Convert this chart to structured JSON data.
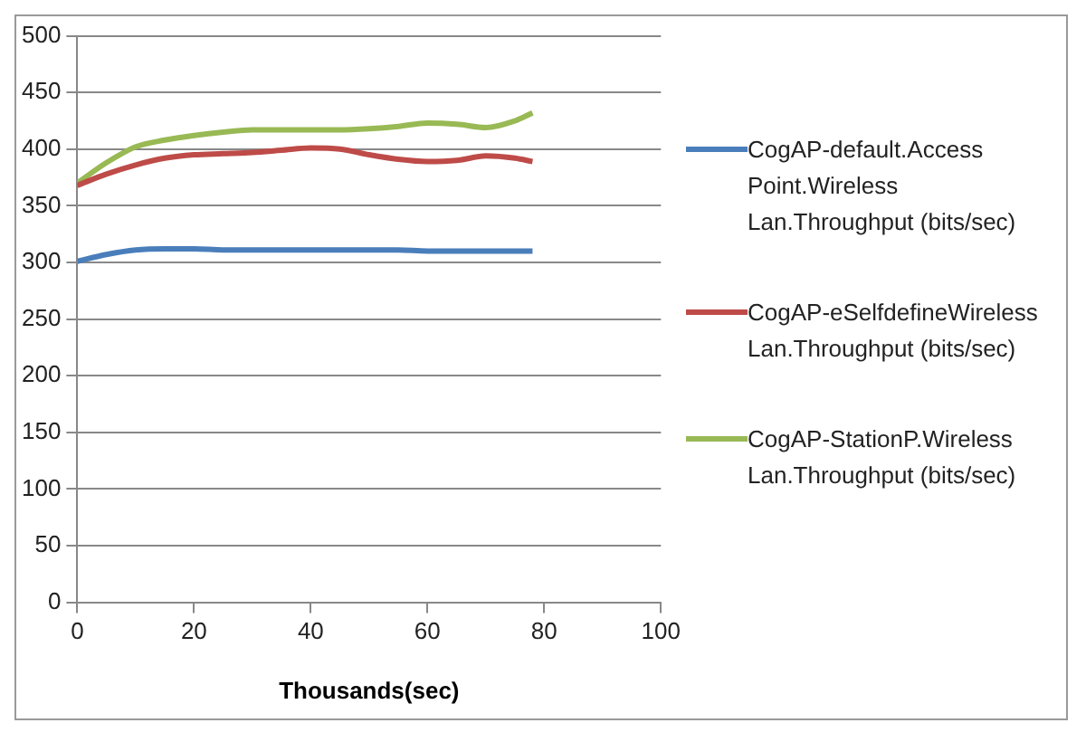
{
  "chart_data": {
    "type": "line",
    "xlabel": "Thousands(sec)",
    "x": [
      0,
      5,
      10,
      15,
      20,
      25,
      30,
      35,
      40,
      45,
      50,
      55,
      60,
      65,
      70,
      75,
      78
    ],
    "series": [
      {
        "name": "CogAP-default.Access Point.Wireless Lan.Throughput (bits/sec)",
        "color": "#4a7ebb",
        "values": [
          301,
          307,
          311,
          312,
          312,
          311,
          311,
          311,
          311,
          311,
          311,
          311,
          310,
          310,
          310,
          310,
          310
        ]
      },
      {
        "name": "CogAP-eSelfdefineWireless Lan.Throughput (bits/sec)",
        "color": "#be4b48",
        "values": [
          368,
          378,
          386,
          392,
          395,
          396,
          397,
          399,
          401,
          400,
          395,
          391,
          389,
          390,
          394,
          392,
          389
        ]
      },
      {
        "name": "CogAP-StationP.Wireless Lan.Throughput (bits/sec)",
        "color": "#98b954",
        "values": [
          370,
          388,
          402,
          408,
          412,
          415,
          417,
          417,
          417,
          417,
          418,
          420,
          423,
          422,
          419,
          425,
          432
        ]
      }
    ],
    "xlim": [
      0,
      100
    ],
    "xticks": [
      0,
      20,
      40,
      60,
      80,
      100
    ],
    "ylim": [
      0,
      500
    ],
    "yticks": [
      0,
      50,
      100,
      150,
      200,
      250,
      300,
      350,
      400,
      450,
      500
    ],
    "grid": "y",
    "legend": "right",
    "marker": "none",
    "line_style": "solid"
  }
}
